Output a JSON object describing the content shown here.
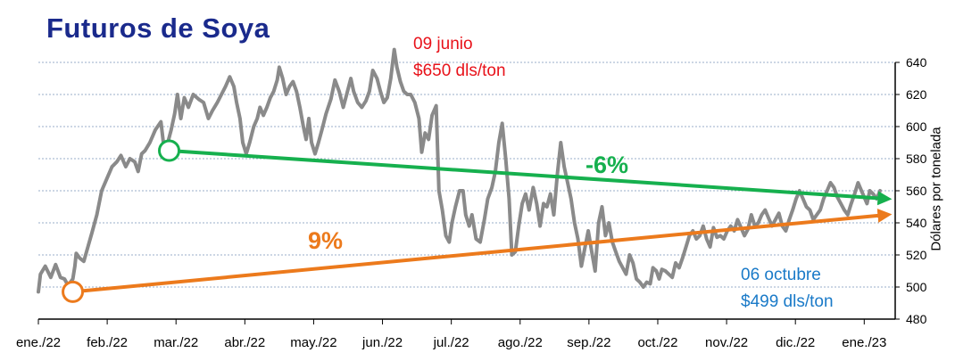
{
  "chart_data": {
    "type": "line",
    "title": "Futuros de Soya",
    "ylabel": "Dólares por tonelada",
    "ylim": [
      480,
      640
    ],
    "yticks": [
      480,
      500,
      520,
      540,
      560,
      580,
      600,
      620,
      640
    ],
    "xlim": [
      0,
      12.45
    ],
    "xticks": [
      {
        "label": "ene./22",
        "pos": 0
      },
      {
        "label": "feb./22",
        "pos": 1
      },
      {
        "label": "mar./22",
        "pos": 2
      },
      {
        "label": "abr./22",
        "pos": 3
      },
      {
        "label": "may./22",
        "pos": 4
      },
      {
        "label": "jun./22",
        "pos": 5
      },
      {
        "label": "jul./22",
        "pos": 6
      },
      {
        "label": "ago./22",
        "pos": 7
      },
      {
        "label": "sep./22",
        "pos": 8
      },
      {
        "label": "oct./22",
        "pos": 9
      },
      {
        "label": "nov./22",
        "pos": 10
      },
      {
        "label": "dic./22",
        "pos": 11
      },
      {
        "label": "ene./23",
        "pos": 12
      }
    ],
    "grid": true,
    "series": [
      {
        "color": "#8a8a8a",
        "points": [
          [
            0.0,
            497
          ],
          [
            0.03,
            508
          ],
          [
            0.1,
            513
          ],
          [
            0.18,
            506
          ],
          [
            0.25,
            514
          ],
          [
            0.32,
            506
          ],
          [
            0.38,
            505
          ],
          [
            0.43,
            501
          ],
          [
            0.5,
            505
          ],
          [
            0.53,
            513
          ],
          [
            0.55,
            521
          ],
          [
            0.6,
            518
          ],
          [
            0.66,
            516
          ],
          [
            0.72,
            525
          ],
          [
            0.78,
            534
          ],
          [
            0.85,
            545
          ],
          [
            0.92,
            560
          ],
          [
            1.0,
            568
          ],
          [
            1.07,
            575
          ],
          [
            1.14,
            578
          ],
          [
            1.2,
            582
          ],
          [
            1.27,
            575
          ],
          [
            1.33,
            580
          ],
          [
            1.4,
            578
          ],
          [
            1.45,
            572
          ],
          [
            1.5,
            583
          ],
          [
            1.55,
            585
          ],
          [
            1.62,
            590
          ],
          [
            1.7,
            598
          ],
          [
            1.78,
            603
          ],
          [
            1.83,
            585
          ],
          [
            1.88,
            590
          ],
          [
            1.93,
            598
          ],
          [
            1.98,
            608
          ],
          [
            2.02,
            620
          ],
          [
            2.07,
            605
          ],
          [
            2.12,
            618
          ],
          [
            2.18,
            612
          ],
          [
            2.25,
            620
          ],
          [
            2.33,
            617
          ],
          [
            2.4,
            615
          ],
          [
            2.47,
            605
          ],
          [
            2.53,
            610
          ],
          [
            2.6,
            615
          ],
          [
            2.66,
            620
          ],
          [
            2.72,
            625
          ],
          [
            2.78,
            631
          ],
          [
            2.84,
            625
          ],
          [
            2.88,
            615
          ],
          [
            2.93,
            605
          ],
          [
            2.97,
            590
          ],
          [
            3.02,
            583
          ],
          [
            3.07,
            590
          ],
          [
            3.13,
            600
          ],
          [
            3.18,
            605
          ],
          [
            3.22,
            612
          ],
          [
            3.27,
            607
          ],
          [
            3.32,
            612
          ],
          [
            3.37,
            618
          ],
          [
            3.42,
            622
          ],
          [
            3.47,
            629
          ],
          [
            3.5,
            637
          ],
          [
            3.55,
            630
          ],
          [
            3.6,
            620
          ],
          [
            3.65,
            625
          ],
          [
            3.7,
            628
          ],
          [
            3.75,
            622
          ],
          [
            3.8,
            612
          ],
          [
            3.85,
            600
          ],
          [
            3.89,
            592
          ],
          [
            3.93,
            605
          ],
          [
            3.97,
            590
          ],
          [
            4.02,
            583
          ],
          [
            4.07,
            590
          ],
          [
            4.12,
            598
          ],
          [
            4.18,
            608
          ],
          [
            4.25,
            617
          ],
          [
            4.31,
            629
          ],
          [
            4.37,
            622
          ],
          [
            4.43,
            612
          ],
          [
            4.48,
            620
          ],
          [
            4.54,
            630
          ],
          [
            4.58,
            622
          ],
          [
            4.64,
            615
          ],
          [
            4.7,
            612
          ],
          [
            4.76,
            616
          ],
          [
            4.81,
            622
          ],
          [
            4.86,
            635
          ],
          [
            4.92,
            630
          ],
          [
            4.97,
            622
          ],
          [
            5.02,
            615
          ],
          [
            5.07,
            618
          ],
          [
            5.12,
            630
          ],
          [
            5.17,
            648
          ],
          [
            5.21,
            637
          ],
          [
            5.26,
            628
          ],
          [
            5.31,
            622
          ],
          [
            5.36,
            620
          ],
          [
            5.41,
            620
          ],
          [
            5.47,
            615
          ],
          [
            5.53,
            605
          ],
          [
            5.57,
            584
          ],
          [
            5.62,
            596
          ],
          [
            5.67,
            592
          ],
          [
            5.72,
            607
          ],
          [
            5.78,
            613
          ],
          [
            5.82,
            560
          ],
          [
            5.87,
            548
          ],
          [
            5.92,
            532
          ],
          [
            5.97,
            528
          ],
          [
            6.01,
            540
          ],
          [
            6.06,
            550
          ],
          [
            6.12,
            560
          ],
          [
            6.17,
            560
          ],
          [
            6.21,
            545
          ],
          [
            6.26,
            538
          ],
          [
            6.3,
            545
          ],
          [
            6.36,
            530
          ],
          [
            6.42,
            528
          ],
          [
            6.48,
            542
          ],
          [
            6.53,
            555
          ],
          [
            6.59,
            562
          ],
          [
            6.64,
            572
          ],
          [
            6.69,
            590
          ],
          [
            6.74,
            602
          ],
          [
            6.79,
            580
          ],
          [
            6.84,
            555
          ],
          [
            6.88,
            520
          ],
          [
            6.93,
            522
          ],
          [
            6.98,
            538
          ],
          [
            7.03,
            552
          ],
          [
            7.08,
            558
          ],
          [
            7.13,
            548
          ],
          [
            7.19,
            562
          ],
          [
            7.24,
            552
          ],
          [
            7.29,
            538
          ],
          [
            7.34,
            552
          ],
          [
            7.39,
            550
          ],
          [
            7.44,
            558
          ],
          [
            7.49,
            545
          ],
          [
            7.54,
            570
          ],
          [
            7.59,
            590
          ],
          [
            7.64,
            575
          ],
          [
            7.69,
            565
          ],
          [
            7.74,
            555
          ],
          [
            7.79,
            540
          ],
          [
            7.84,
            530
          ],
          [
            7.89,
            513
          ],
          [
            7.94,
            524
          ],
          [
            7.99,
            535
          ],
          [
            8.04,
            522
          ],
          [
            8.09,
            510
          ],
          [
            8.14,
            540
          ],
          [
            8.19,
            550
          ],
          [
            8.24,
            532
          ],
          [
            8.29,
            540
          ],
          [
            8.34,
            528
          ],
          [
            8.39,
            522
          ],
          [
            8.44,
            516
          ],
          [
            8.49,
            512
          ],
          [
            8.54,
            508
          ],
          [
            8.59,
            520
          ],
          [
            8.64,
            515
          ],
          [
            8.69,
            505
          ],
          [
            8.74,
            503
          ],
          [
            8.79,
            500
          ],
          [
            8.84,
            503
          ],
          [
            8.89,
            502
          ],
          [
            8.93,
            512
          ],
          [
            8.98,
            510
          ],
          [
            9.02,
            505
          ],
          [
            9.06,
            511
          ],
          [
            9.11,
            510
          ],
          [
            9.16,
            508
          ],
          [
            9.21,
            506
          ],
          [
            9.26,
            515
          ],
          [
            9.31,
            512
          ],
          [
            9.36,
            518
          ],
          [
            9.41,
            525
          ],
          [
            9.46,
            532
          ],
          [
            9.51,
            535
          ],
          [
            9.56,
            530
          ],
          [
            9.61,
            532
          ],
          [
            9.66,
            538
          ],
          [
            9.71,
            530
          ],
          [
            9.76,
            525
          ],
          [
            9.81,
            537
          ],
          [
            9.86,
            531
          ],
          [
            9.91,
            532
          ],
          [
            9.96,
            530
          ],
          [
            10.01,
            535
          ],
          [
            10.06,
            538
          ],
          [
            10.11,
            535
          ],
          [
            10.16,
            542
          ],
          [
            10.21,
            537
          ],
          [
            10.26,
            532
          ],
          [
            10.31,
            536
          ],
          [
            10.36,
            545
          ],
          [
            10.41,
            538
          ],
          [
            10.46,
            540
          ],
          [
            10.51,
            545
          ],
          [
            10.56,
            548
          ],
          [
            10.61,
            543
          ],
          [
            10.66,
            538
          ],
          [
            10.71,
            542
          ],
          [
            10.76,
            546
          ],
          [
            10.81,
            538
          ],
          [
            10.86,
            535
          ],
          [
            10.91,
            542
          ],
          [
            10.96,
            548
          ],
          [
            11.01,
            555
          ],
          [
            11.06,
            560
          ],
          [
            11.11,
            555
          ],
          [
            11.16,
            550
          ],
          [
            11.21,
            548
          ],
          [
            11.26,
            542
          ],
          [
            11.31,
            545
          ],
          [
            11.36,
            548
          ],
          [
            11.41,
            555
          ],
          [
            11.46,
            560
          ],
          [
            11.51,
            565
          ],
          [
            11.56,
            562
          ],
          [
            11.61,
            556
          ],
          [
            11.66,
            552
          ],
          [
            11.71,
            548
          ],
          [
            11.76,
            545
          ],
          [
            11.81,
            552
          ],
          [
            11.86,
            558
          ],
          [
            11.91,
            565
          ],
          [
            11.96,
            560
          ],
          [
            12.0,
            556
          ],
          [
            12.04,
            552
          ],
          [
            12.08,
            560
          ],
          [
            12.13,
            558
          ],
          [
            12.18,
            555
          ],
          [
            12.23,
            560
          ]
        ]
      }
    ],
    "trendlines": [
      {
        "label": "-6%",
        "color": "#16b04e",
        "from": [
          1.9,
          585
        ],
        "to": [
          12.45,
          555
        ],
        "start_marker": "circle"
      },
      {
        "label": "9%",
        "color": "#ec7a1c",
        "from": [
          0.5,
          497
        ],
        "to": [
          12.45,
          545
        ],
        "start_marker": "circle"
      }
    ],
    "annotations": [
      {
        "lines": [
          "09 junio",
          "$650 dls/ton"
        ],
        "color": "#e8121a"
      },
      {
        "lines": [
          "06 octubre",
          "$499 dls/ton"
        ],
        "color": "#1a7ac8"
      }
    ]
  }
}
